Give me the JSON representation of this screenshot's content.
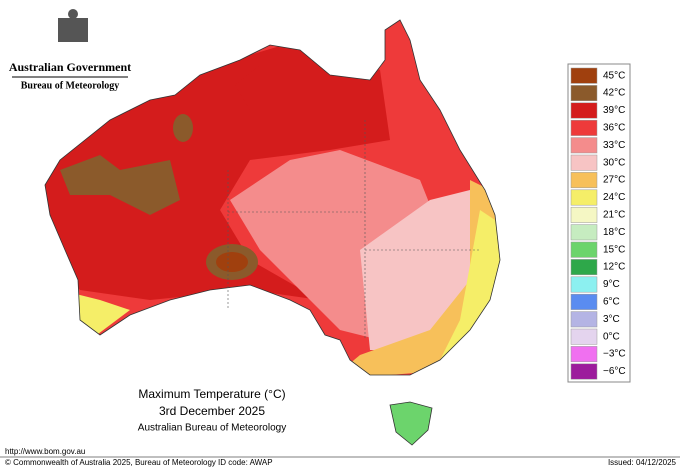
{
  "header": {
    "title": "Australian Government",
    "subtitle": "Bureau of Meteorology"
  },
  "map": {
    "title": "Maximum Temperature (°C)",
    "date": "3rd December 2025",
    "source": "Australian Bureau of Meteorology"
  },
  "legend": {
    "items": [
      {
        "label": "45°C",
        "color": "#a0400e"
      },
      {
        "label": "42°C",
        "color": "#8b5a2b"
      },
      {
        "label": "39°C",
        "color": "#d41c1c"
      },
      {
        "label": "36°C",
        "color": "#ee3a3a"
      },
      {
        "label": "33°C",
        "color": "#f48c8c"
      },
      {
        "label": "30°C",
        "color": "#f7c4c4"
      },
      {
        "label": "27°C",
        "color": "#f7c05a"
      },
      {
        "label": "24°C",
        "color": "#f5ee68"
      },
      {
        "label": "21°C",
        "color": "#f5f7c4"
      },
      {
        "label": "18°C",
        "color": "#c6ecc0"
      },
      {
        "label": "15°C",
        "color": "#6cd46c"
      },
      {
        "label": "12°C",
        "color": "#2ea84a"
      },
      {
        "label": "9°C",
        "color": "#8cf0f0"
      },
      {
        "label": "6°C",
        "color": "#5a8cf0"
      },
      {
        "label": "3°C",
        "color": "#b4b4e4"
      },
      {
        "label": "0°C",
        "color": "#e4d4ee"
      },
      {
        "label": "−3°C",
        "color": "#f070f0"
      },
      {
        "label": "−6°C",
        "color": "#9c1c9c"
      }
    ]
  },
  "footer": {
    "url": "http://www.bom.gov.au",
    "copyright": "© Commonwealth of Australia 2025, Bureau of Meteorology",
    "id_code": "ID code: AWAP",
    "issued": "Issued: 04/12/2025"
  }
}
